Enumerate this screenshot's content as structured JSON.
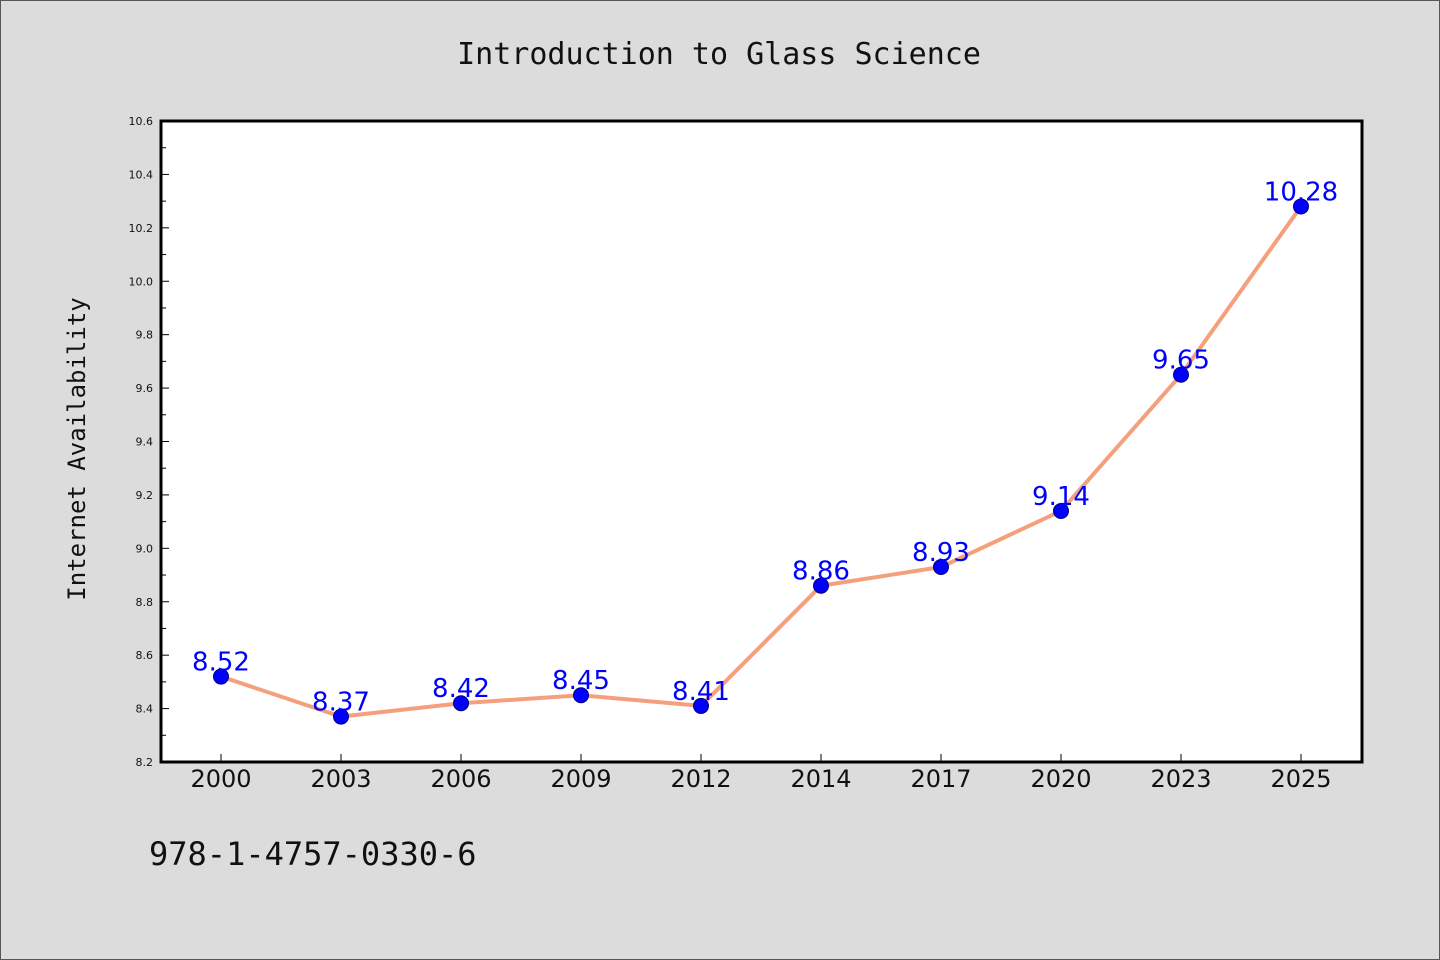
{
  "chart_data": {
    "type": "line",
    "title": "Introduction to Glass Science",
    "xlabel": "",
    "ylabel": "Internet Availability",
    "categories": [
      "2000",
      "2003",
      "2006",
      "2009",
      "2012",
      "2014",
      "2017",
      "2020",
      "2023",
      "2025"
    ],
    "series": [
      {
        "values": [
          8.52,
          8.37,
          8.42,
          8.45,
          8.41,
          8.86,
          8.93,
          9.14,
          9.65,
          10.28
        ],
        "labels": [
          "8.52",
          "8.37",
          "8.42",
          "8.45",
          "8.41",
          "8.86",
          "8.93",
          "9.14",
          "9.65",
          "10.28"
        ]
      }
    ],
    "ylim": [
      8.2,
      10.6
    ],
    "yticks": [
      "8.2",
      "8.4",
      "8.6",
      "8.8",
      "9.0",
      "9.2",
      "9.4",
      "9.6",
      "9.8",
      "10.0",
      "10.2",
      "10.4",
      "10.6"
    ],
    "grid": false,
    "legend": "none",
    "colors": {
      "line": "#f4a07c",
      "marker": "#0000ff",
      "marker_edge": "#000080",
      "data_label": "#0000ff",
      "plot_background": "#ffffff",
      "figure_background": "#dcdcdc"
    }
  },
  "footnote": "978-1-4757-0330-6"
}
